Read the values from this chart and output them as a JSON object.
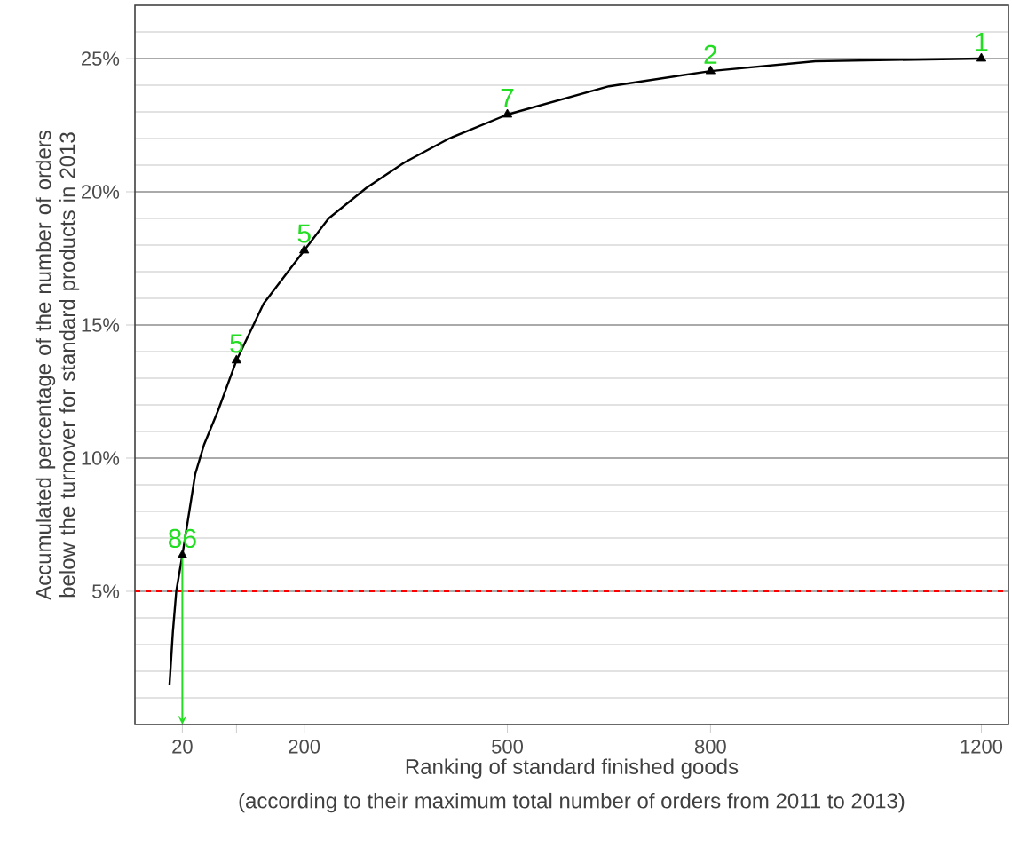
{
  "chart_data": {
    "type": "line",
    "xlabel": "Ranking of standard finished goods",
    "ylabel": "Accumulated percentage of the number of orders below the turnover for standard products in 2013",
    "xlim": [
      -50,
      1240
    ],
    "ylim": [
      0,
      27
    ],
    "xticks": [
      20,
      {
        "value": 100,
        "label": null
      },
      200,
      500,
      800,
      1200
    ],
    "yticks": [
      {
        "value": 5,
        "label": "5%"
      },
      {
        "value": 10,
        "label": "10%"
      },
      {
        "value": 15,
        "label": "15%"
      },
      {
        "value": 20,
        "label": "20%"
      },
      {
        "value": 25,
        "label": "25%"
      }
    ],
    "grid": "y",
    "marker": "none",
    "line_style": "solid",
    "series": [
      {
        "color": "#000000",
        "x": [
          1,
          6,
          11,
          20,
          39,
          52,
          73,
          100,
          140,
          200,
          236,
          292,
          348,
          414,
          500,
          650,
          800,
          955,
          1200
        ],
        "values": [
          1.47,
          3.47,
          5.0,
          6.35,
          9.4,
          10.5,
          11.8,
          13.67,
          15.8,
          17.8,
          19.0,
          20.15,
          21.1,
          22.0,
          22.9,
          23.96,
          24.53,
          24.9,
          25.0
        ]
      },
      {
        "type": "scatter",
        "marker": "triangle",
        "color": "#000000",
        "x": [
          20,
          100,
          200,
          500,
          800,
          1200
        ],
        "values": [
          6.35,
          13.67,
          17.8,
          22.9,
          24.53,
          25.0
        ]
      }
    ],
    "ref_lines": [
      {
        "axis": "y",
        "value": 5,
        "color": "#ff0000",
        "line_style": "dashed"
      }
    ],
    "annotations": [
      {
        "text": "86",
        "x": 20,
        "y": 6.35
      },
      {
        "text": "5",
        "x": 100,
        "y": 13.67
      },
      {
        "text": "5",
        "x": 200,
        "y": 17.8
      },
      {
        "text": "7",
        "x": 500,
        "y": 22.9
      },
      {
        "text": "2",
        "x": 800,
        "y": 24.53
      },
      {
        "text": "1",
        "x": 1200,
        "y": 25.0
      },
      "(according to their maximum total number of orders from 2011 to 2013)"
    ]
  }
}
